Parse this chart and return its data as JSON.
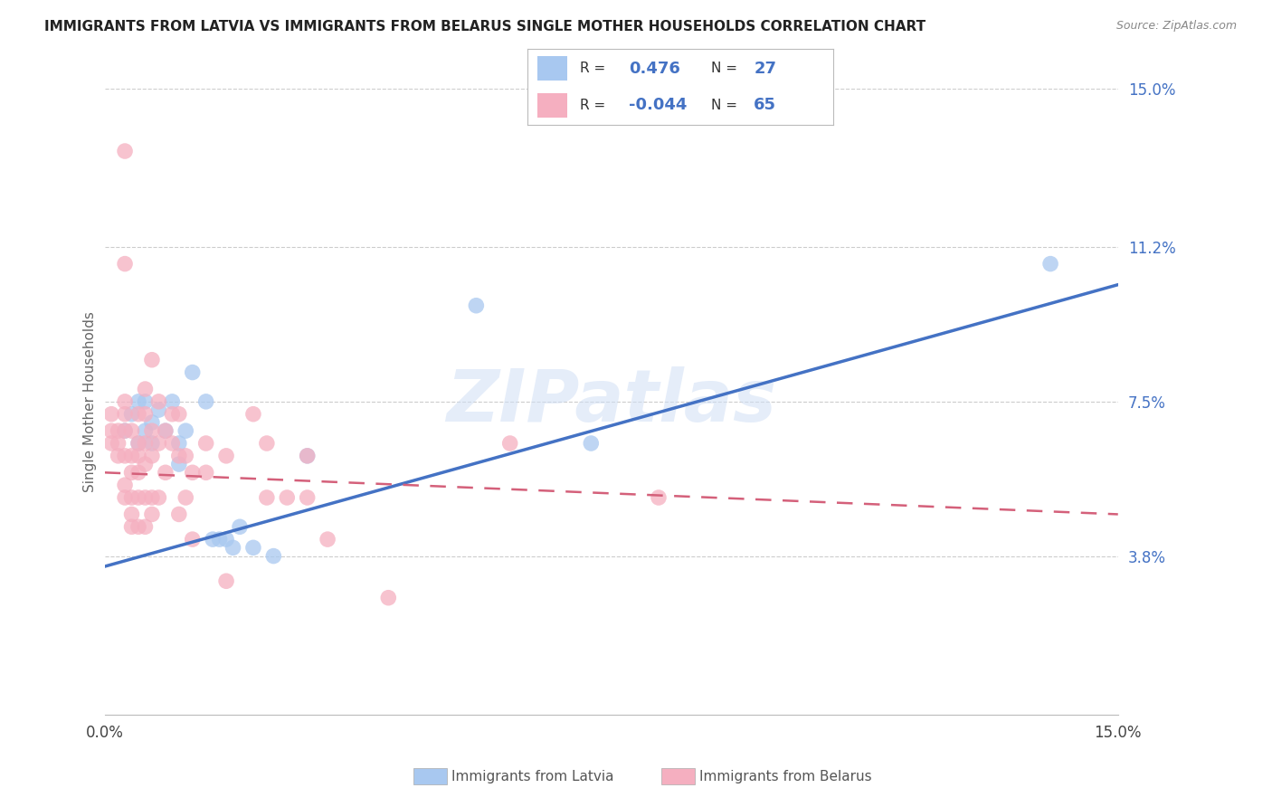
{
  "title": "IMMIGRANTS FROM LATVIA VS IMMIGRANTS FROM BELARUS SINGLE MOTHER HOUSEHOLDS CORRELATION CHART",
  "source": "Source: ZipAtlas.com",
  "ylabel": "Single Mother Households",
  "xmin": 0.0,
  "xmax": 0.15,
  "ymin": 0.0,
  "ymax": 0.15,
  "yticks": [
    0.038,
    0.075,
    0.112,
    0.15
  ],
  "ytick_labels": [
    "3.8%",
    "7.5%",
    "11.2%",
    "15.0%"
  ],
  "legend_latvia_r": "0.476",
  "legend_latvia_n": "27",
  "legend_belarus_r": "-0.044",
  "legend_belarus_n": "65",
  "latvia_color": "#a8c8f0",
  "belarus_color": "#f5afc0",
  "trendline_latvia_color": "#4472c4",
  "trendline_belarus_color": "#d4607a",
  "watermark": "ZIPatlas",
  "trendline_latvia": [
    0.0,
    0.0355,
    0.15,
    0.103
  ],
  "trendline_belarus": [
    0.0,
    0.058,
    0.15,
    0.048
  ],
  "latvia_points": [
    [
      0.003,
      0.068
    ],
    [
      0.004,
      0.072
    ],
    [
      0.005,
      0.075
    ],
    [
      0.005,
      0.065
    ],
    [
      0.006,
      0.068
    ],
    [
      0.006,
      0.075
    ],
    [
      0.007,
      0.07
    ],
    [
      0.007,
      0.065
    ],
    [
      0.008,
      0.073
    ],
    [
      0.009,
      0.068
    ],
    [
      0.01,
      0.075
    ],
    [
      0.011,
      0.065
    ],
    [
      0.011,
      0.06
    ],
    [
      0.012,
      0.068
    ],
    [
      0.013,
      0.082
    ],
    [
      0.015,
      0.075
    ],
    [
      0.016,
      0.042
    ],
    [
      0.017,
      0.042
    ],
    [
      0.018,
      0.042
    ],
    [
      0.019,
      0.04
    ],
    [
      0.02,
      0.045
    ],
    [
      0.022,
      0.04
    ],
    [
      0.025,
      0.038
    ],
    [
      0.03,
      0.062
    ],
    [
      0.055,
      0.098
    ],
    [
      0.072,
      0.065
    ],
    [
      0.14,
      0.108
    ]
  ],
  "belarus_points": [
    [
      0.001,
      0.068
    ],
    [
      0.001,
      0.072
    ],
    [
      0.001,
      0.065
    ],
    [
      0.002,
      0.062
    ],
    [
      0.002,
      0.068
    ],
    [
      0.002,
      0.065
    ],
    [
      0.003,
      0.072
    ],
    [
      0.003,
      0.068
    ],
    [
      0.003,
      0.062
    ],
    [
      0.003,
      0.075
    ],
    [
      0.003,
      0.055
    ],
    [
      0.003,
      0.052
    ],
    [
      0.004,
      0.068
    ],
    [
      0.004,
      0.062
    ],
    [
      0.004,
      0.058
    ],
    [
      0.004,
      0.052
    ],
    [
      0.004,
      0.048
    ],
    [
      0.004,
      0.045
    ],
    [
      0.005,
      0.072
    ],
    [
      0.005,
      0.065
    ],
    [
      0.005,
      0.062
    ],
    [
      0.005,
      0.058
    ],
    [
      0.005,
      0.052
    ],
    [
      0.005,
      0.045
    ],
    [
      0.006,
      0.078
    ],
    [
      0.006,
      0.072
    ],
    [
      0.006,
      0.065
    ],
    [
      0.006,
      0.06
    ],
    [
      0.006,
      0.052
    ],
    [
      0.006,
      0.045
    ],
    [
      0.007,
      0.085
    ],
    [
      0.007,
      0.068
    ],
    [
      0.007,
      0.062
    ],
    [
      0.007,
      0.052
    ],
    [
      0.007,
      0.048
    ],
    [
      0.008,
      0.075
    ],
    [
      0.008,
      0.065
    ],
    [
      0.008,
      0.052
    ],
    [
      0.009,
      0.068
    ],
    [
      0.009,
      0.058
    ],
    [
      0.01,
      0.072
    ],
    [
      0.01,
      0.065
    ],
    [
      0.011,
      0.072
    ],
    [
      0.011,
      0.062
    ],
    [
      0.011,
      0.048
    ],
    [
      0.012,
      0.062
    ],
    [
      0.012,
      0.052
    ],
    [
      0.013,
      0.058
    ],
    [
      0.013,
      0.042
    ],
    [
      0.015,
      0.065
    ],
    [
      0.015,
      0.058
    ],
    [
      0.018,
      0.062
    ],
    [
      0.018,
      0.032
    ],
    [
      0.022,
      0.072
    ],
    [
      0.024,
      0.065
    ],
    [
      0.024,
      0.052
    ],
    [
      0.027,
      0.052
    ],
    [
      0.03,
      0.062
    ],
    [
      0.03,
      0.052
    ],
    [
      0.033,
      0.042
    ],
    [
      0.042,
      0.028
    ],
    [
      0.06,
      0.065
    ],
    [
      0.082,
      0.052
    ],
    [
      0.003,
      0.135
    ],
    [
      0.003,
      0.108
    ]
  ]
}
